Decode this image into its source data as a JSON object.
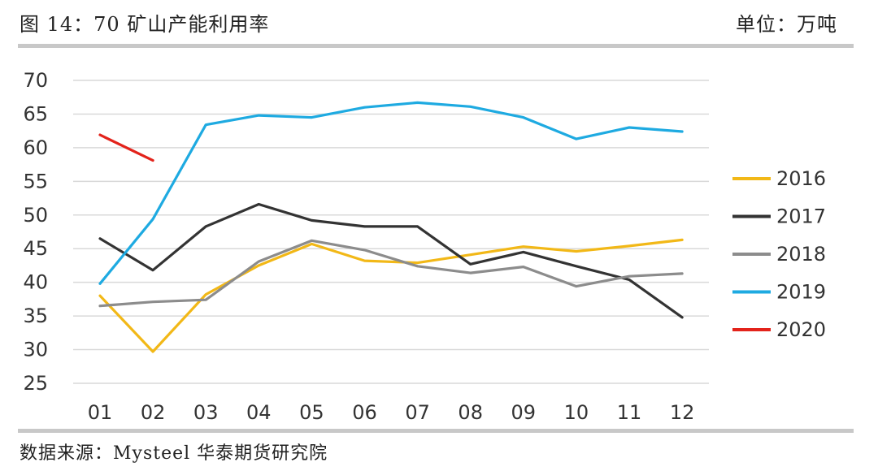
{
  "header": {
    "title": "图 14：70 矿山产能利用率",
    "unit": "单位：万吨"
  },
  "footer": {
    "source": "数据来源：Mysteel 华泰期货研究院"
  },
  "chart_data": {
    "type": "line",
    "title": "70 矿山产能利用率",
    "xlabel": "",
    "ylabel": "",
    "unit": "万吨",
    "categories": [
      "01",
      "02",
      "03",
      "04",
      "05",
      "06",
      "07",
      "08",
      "09",
      "10",
      "11",
      "12"
    ],
    "ylim": [
      25,
      70
    ],
    "yticks": [
      25,
      30,
      35,
      40,
      45,
      50,
      55,
      60,
      65,
      70
    ],
    "grid": true,
    "legend_position": "right",
    "series": [
      {
        "name": "2016",
        "color": "#F2B817",
        "values": [
          38.0,
          29.7,
          38.2,
          42.5,
          45.7,
          43.2,
          42.9,
          44.1,
          45.3,
          44.6,
          45.4,
          46.3
        ]
      },
      {
        "name": "2017",
        "color": "#333333",
        "values": [
          46.5,
          41.8,
          48.3,
          51.6,
          49.2,
          48.3,
          48.3,
          42.7,
          44.5,
          42.4,
          40.4,
          34.8
        ]
      },
      {
        "name": "2018",
        "color": "#8C8C8C",
        "values": [
          36.5,
          37.1,
          37.4,
          43.1,
          46.2,
          44.8,
          42.4,
          41.4,
          42.3,
          39.4,
          40.9,
          41.3
        ]
      },
      {
        "name": "2019",
        "color": "#1EAAE1",
        "values": [
          39.8,
          49.4,
          63.4,
          64.8,
          64.5,
          66.0,
          66.7,
          66.1,
          64.5,
          61.3,
          63.0,
          62.4
        ]
      },
      {
        "name": "2020",
        "color": "#E3231B",
        "values": [
          61.9,
          58.1,
          null,
          null,
          null,
          null,
          null,
          null,
          null,
          null,
          null,
          null
        ]
      }
    ]
  }
}
